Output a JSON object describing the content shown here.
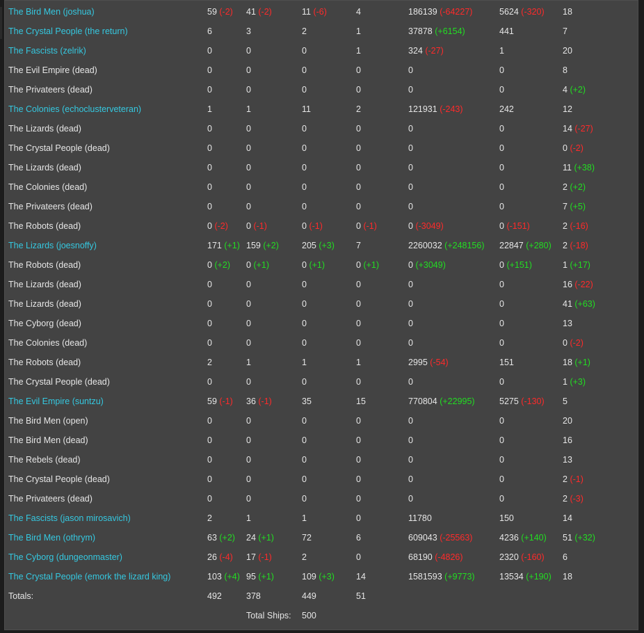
{
  "colors": {
    "player_link": "#35c8e0",
    "positive": "#22dd22",
    "negative": "#ff2a2a",
    "background": "#434343"
  },
  "rows": [
    {
      "name": "The Bird Men (joshua)",
      "link": true,
      "cells": [
        [
          "59",
          "-2"
        ],
        [
          "41",
          "-2"
        ],
        [
          "11",
          "-6"
        ],
        [
          "4",
          ""
        ],
        [
          "186139",
          "-64227"
        ],
        [
          "5624",
          "-320"
        ],
        [
          "18",
          ""
        ]
      ]
    },
    {
      "name": "The Crystal People (the return)",
      "link": true,
      "cells": [
        [
          "6",
          ""
        ],
        [
          "3",
          ""
        ],
        [
          "2",
          ""
        ],
        [
          "1",
          ""
        ],
        [
          "37878",
          "+6154"
        ],
        [
          "441",
          ""
        ],
        [
          "7",
          ""
        ]
      ]
    },
    {
      "name": "The Fascists (zelrik)",
      "link": true,
      "cells": [
        [
          "0",
          ""
        ],
        [
          "0",
          ""
        ],
        [
          "0",
          ""
        ],
        [
          "1",
          ""
        ],
        [
          "324",
          "-27"
        ],
        [
          "1",
          ""
        ],
        [
          "20",
          ""
        ]
      ]
    },
    {
      "name": "The Evil Empire (dead)",
      "link": false,
      "cells": [
        [
          "0",
          ""
        ],
        [
          "0",
          ""
        ],
        [
          "0",
          ""
        ],
        [
          "0",
          ""
        ],
        [
          "0",
          ""
        ],
        [
          "0",
          ""
        ],
        [
          "8",
          ""
        ]
      ]
    },
    {
      "name": "The Privateers (dead)",
      "link": false,
      "cells": [
        [
          "0",
          ""
        ],
        [
          "0",
          ""
        ],
        [
          "0",
          ""
        ],
        [
          "0",
          ""
        ],
        [
          "0",
          ""
        ],
        [
          "0",
          ""
        ],
        [
          "4",
          "+2"
        ]
      ]
    },
    {
      "name": "The Colonies (echoclusterveteran)",
      "link": true,
      "cells": [
        [
          "1",
          ""
        ],
        [
          "1",
          ""
        ],
        [
          "11",
          ""
        ],
        [
          "2",
          ""
        ],
        [
          "121931",
          "-243"
        ],
        [
          "242",
          ""
        ],
        [
          "12",
          ""
        ]
      ]
    },
    {
      "name": "The Lizards (dead)",
      "link": false,
      "cells": [
        [
          "0",
          ""
        ],
        [
          "0",
          ""
        ],
        [
          "0",
          ""
        ],
        [
          "0",
          ""
        ],
        [
          "0",
          ""
        ],
        [
          "0",
          ""
        ],
        [
          "14",
          "-27"
        ]
      ]
    },
    {
      "name": "The Crystal People (dead)",
      "link": false,
      "cells": [
        [
          "0",
          ""
        ],
        [
          "0",
          ""
        ],
        [
          "0",
          ""
        ],
        [
          "0",
          ""
        ],
        [
          "0",
          ""
        ],
        [
          "0",
          ""
        ],
        [
          "0",
          "-2"
        ]
      ]
    },
    {
      "name": "The Lizards (dead)",
      "link": false,
      "cells": [
        [
          "0",
          ""
        ],
        [
          "0",
          ""
        ],
        [
          "0",
          ""
        ],
        [
          "0",
          ""
        ],
        [
          "0",
          ""
        ],
        [
          "0",
          ""
        ],
        [
          "11",
          "+38"
        ]
      ]
    },
    {
      "name": "The Colonies (dead)",
      "link": false,
      "cells": [
        [
          "0",
          ""
        ],
        [
          "0",
          ""
        ],
        [
          "0",
          ""
        ],
        [
          "0",
          ""
        ],
        [
          "0",
          ""
        ],
        [
          "0",
          ""
        ],
        [
          "2",
          "+2"
        ]
      ]
    },
    {
      "name": "The Privateers (dead)",
      "link": false,
      "cells": [
        [
          "0",
          ""
        ],
        [
          "0",
          ""
        ],
        [
          "0",
          ""
        ],
        [
          "0",
          ""
        ],
        [
          "0",
          ""
        ],
        [
          "0",
          ""
        ],
        [
          "7",
          "+5"
        ]
      ]
    },
    {
      "name": "The Robots (dead)",
      "link": false,
      "cells": [
        [
          "0",
          "-2"
        ],
        [
          "0",
          "-1"
        ],
        [
          "0",
          "-1"
        ],
        [
          "0",
          "-1"
        ],
        [
          "0",
          "-3049"
        ],
        [
          "0",
          "-151"
        ],
        [
          "2",
          "-16"
        ]
      ]
    },
    {
      "name": "The Lizards (joesnoffy)",
      "link": true,
      "cells": [
        [
          "171",
          "+1"
        ],
        [
          "159",
          "+2"
        ],
        [
          "205",
          "+3"
        ],
        [
          "7",
          ""
        ],
        [
          "2260032",
          "+248156"
        ],
        [
          "22847",
          "+280"
        ],
        [
          "2",
          "-18"
        ]
      ]
    },
    {
      "name": "The Robots (dead)",
      "link": false,
      "cells": [
        [
          "0",
          "+2"
        ],
        [
          "0",
          "+1"
        ],
        [
          "0",
          "+1"
        ],
        [
          "0",
          "+1"
        ],
        [
          "0",
          "+3049"
        ],
        [
          "0",
          "+151"
        ],
        [
          "1",
          "+17"
        ]
      ]
    },
    {
      "name": "The Lizards (dead)",
      "link": false,
      "cells": [
        [
          "0",
          ""
        ],
        [
          "0",
          ""
        ],
        [
          "0",
          ""
        ],
        [
          "0",
          ""
        ],
        [
          "0",
          ""
        ],
        [
          "0",
          ""
        ],
        [
          "16",
          "-22"
        ]
      ]
    },
    {
      "name": "The Lizards (dead)",
      "link": false,
      "cells": [
        [
          "0",
          ""
        ],
        [
          "0",
          ""
        ],
        [
          "0",
          ""
        ],
        [
          "0",
          ""
        ],
        [
          "0",
          ""
        ],
        [
          "0",
          ""
        ],
        [
          "41",
          "+63"
        ]
      ]
    },
    {
      "name": "The Cyborg (dead)",
      "link": false,
      "cells": [
        [
          "0",
          ""
        ],
        [
          "0",
          ""
        ],
        [
          "0",
          ""
        ],
        [
          "0",
          ""
        ],
        [
          "0",
          ""
        ],
        [
          "0",
          ""
        ],
        [
          "13",
          ""
        ]
      ]
    },
    {
      "name": "The Colonies (dead)",
      "link": false,
      "cells": [
        [
          "0",
          ""
        ],
        [
          "0",
          ""
        ],
        [
          "0",
          ""
        ],
        [
          "0",
          ""
        ],
        [
          "0",
          ""
        ],
        [
          "0",
          ""
        ],
        [
          "0",
          "-2"
        ]
      ]
    },
    {
      "name": "The Robots (dead)",
      "link": false,
      "cells": [
        [
          "2",
          ""
        ],
        [
          "1",
          ""
        ],
        [
          "1",
          ""
        ],
        [
          "1",
          ""
        ],
        [
          "2995",
          "-54"
        ],
        [
          "151",
          ""
        ],
        [
          "18",
          "+1"
        ]
      ]
    },
    {
      "name": "The Crystal People (dead)",
      "link": false,
      "cells": [
        [
          "0",
          ""
        ],
        [
          "0",
          ""
        ],
        [
          "0",
          ""
        ],
        [
          "0",
          ""
        ],
        [
          "0",
          ""
        ],
        [
          "0",
          ""
        ],
        [
          "1",
          "+3"
        ]
      ]
    },
    {
      "name": "The Evil Empire (suntzu)",
      "link": true,
      "cells": [
        [
          "59",
          "-1"
        ],
        [
          "36",
          "-1"
        ],
        [
          "35",
          ""
        ],
        [
          "15",
          ""
        ],
        [
          "770804",
          "+22995"
        ],
        [
          "5275",
          "-130"
        ],
        [
          "5",
          ""
        ]
      ]
    },
    {
      "name": "The Bird Men (open)",
      "link": false,
      "cells": [
        [
          "0",
          ""
        ],
        [
          "0",
          ""
        ],
        [
          "0",
          ""
        ],
        [
          "0",
          ""
        ],
        [
          "0",
          ""
        ],
        [
          "0",
          ""
        ],
        [
          "20",
          ""
        ]
      ]
    },
    {
      "name": "The Bird Men (dead)",
      "link": false,
      "cells": [
        [
          "0",
          ""
        ],
        [
          "0",
          ""
        ],
        [
          "0",
          ""
        ],
        [
          "0",
          ""
        ],
        [
          "0",
          ""
        ],
        [
          "0",
          ""
        ],
        [
          "16",
          ""
        ]
      ]
    },
    {
      "name": "The Rebels (dead)",
      "link": false,
      "cells": [
        [
          "0",
          ""
        ],
        [
          "0",
          ""
        ],
        [
          "0",
          ""
        ],
        [
          "0",
          ""
        ],
        [
          "0",
          ""
        ],
        [
          "0",
          ""
        ],
        [
          "13",
          ""
        ]
      ]
    },
    {
      "name": "The Crystal People (dead)",
      "link": false,
      "cells": [
        [
          "0",
          ""
        ],
        [
          "0",
          ""
        ],
        [
          "0",
          ""
        ],
        [
          "0",
          ""
        ],
        [
          "0",
          ""
        ],
        [
          "0",
          ""
        ],
        [
          "2",
          "-1"
        ]
      ]
    },
    {
      "name": "The Privateers (dead)",
      "link": false,
      "cells": [
        [
          "0",
          ""
        ],
        [
          "0",
          ""
        ],
        [
          "0",
          ""
        ],
        [
          "0",
          ""
        ],
        [
          "0",
          ""
        ],
        [
          "0",
          ""
        ],
        [
          "2",
          "-3"
        ]
      ]
    },
    {
      "name": "The Fascists (jason mirosavich)",
      "link": true,
      "cells": [
        [
          "2",
          ""
        ],
        [
          "1",
          ""
        ],
        [
          "1",
          ""
        ],
        [
          "0",
          ""
        ],
        [
          "11780",
          ""
        ],
        [
          "150",
          ""
        ],
        [
          "14",
          ""
        ]
      ]
    },
    {
      "name": "The Bird Men (othrym)",
      "link": true,
      "cells": [
        [
          "63",
          "+2"
        ],
        [
          "24",
          "+1"
        ],
        [
          "72",
          ""
        ],
        [
          "6",
          ""
        ],
        [
          "609043",
          "-25563"
        ],
        [
          "4236",
          "+140"
        ],
        [
          "51",
          "+32"
        ]
      ]
    },
    {
      "name": "The Cyborg (dungeonmaster)",
      "link": true,
      "cells": [
        [
          "26",
          "-4"
        ],
        [
          "17",
          "-1"
        ],
        [
          "2",
          ""
        ],
        [
          "0",
          ""
        ],
        [
          "68190",
          "-4826"
        ],
        [
          "2320",
          "-160"
        ],
        [
          "6",
          ""
        ]
      ]
    },
    {
      "name": "The Crystal People (emork the lizard king)",
      "link": true,
      "cells": [
        [
          "103",
          "+4"
        ],
        [
          "95",
          "+1"
        ],
        [
          "109",
          "+3"
        ],
        [
          "14",
          ""
        ],
        [
          "1581593",
          "+9773"
        ],
        [
          "13534",
          "+190"
        ],
        [
          "18",
          ""
        ]
      ]
    }
  ],
  "totals": {
    "label": "Totals:",
    "values": [
      "492",
      "378",
      "449",
      "51"
    ]
  },
  "total_ships": {
    "label": "Total Ships:",
    "value": "500"
  }
}
